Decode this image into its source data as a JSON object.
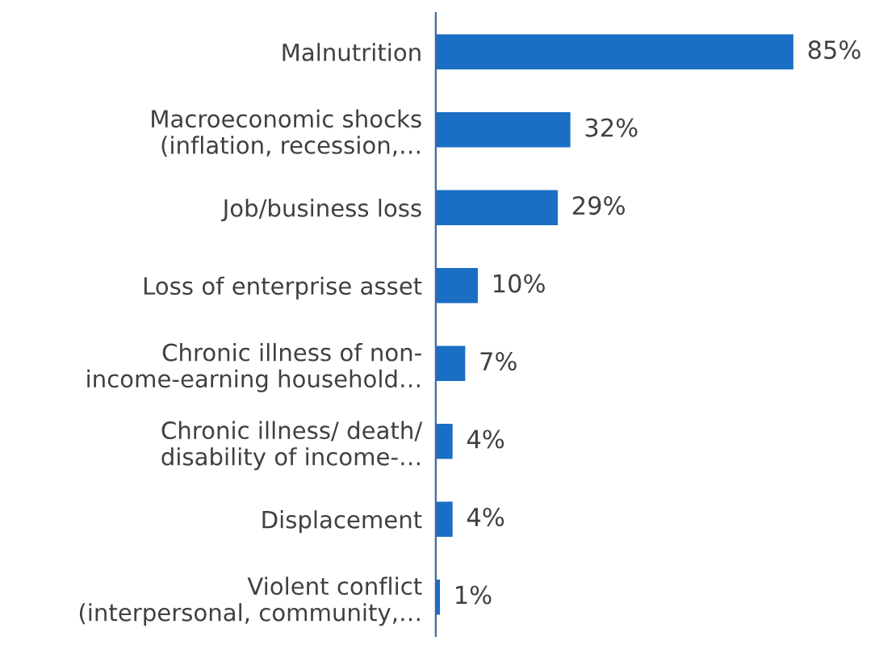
{
  "chart_data": {
    "type": "bar",
    "orientation": "horizontal",
    "categories": [
      "Malnutrition",
      "Macroeconomic shocks\n(inflation, recession,…",
      "Job/business loss",
      "Loss of enterprise asset",
      "Chronic illness of non-\nincome-earning household…",
      "Chronic illness/ death/\ndisability of income-…",
      "Displacement",
      "Violent conflict\n(interpersonal, community,…"
    ],
    "values": [
      85,
      32,
      29,
      10,
      7,
      4,
      4,
      1
    ],
    "value_labels": [
      "85%",
      "32%",
      "29%",
      "10%",
      "7%",
      "4%",
      "4%",
      "1%"
    ],
    "color": "#1a6ec4",
    "grid": false,
    "legend": false
  }
}
